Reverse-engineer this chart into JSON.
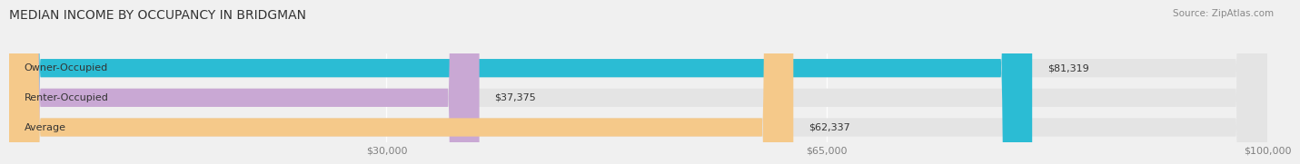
{
  "title": "MEDIAN INCOME BY OCCUPANCY IN BRIDGMAN",
  "source": "Source: ZipAtlas.com",
  "categories": [
    "Owner-Occupied",
    "Renter-Occupied",
    "Average"
  ],
  "values": [
    81319,
    37375,
    62337
  ],
  "bar_colors": [
    "#2bbcd4",
    "#c9a8d4",
    "#f5c98a"
  ],
  "bar_labels": [
    "$81,319",
    "$37,375",
    "$62,337"
  ],
  "xlim": [
    0,
    100000
  ],
  "xticks": [
    30000,
    65000,
    100000
  ],
  "xtick_labels": [
    "$30,000",
    "$65,000",
    "$100,000"
  ],
  "bg_color": "#f0f0f0",
  "bar_bg_color": "#e4e4e4",
  "title_fontsize": 10,
  "label_fontsize": 8,
  "source_fontsize": 7.5
}
